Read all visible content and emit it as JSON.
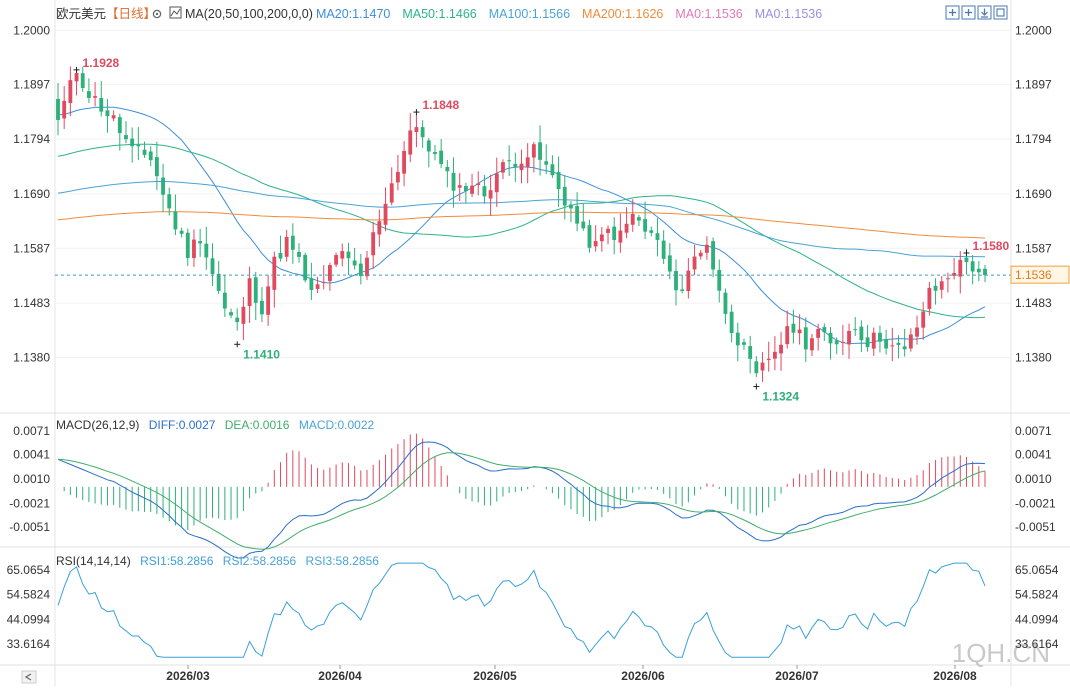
{
  "header": {
    "symbol": "欧元美元",
    "period": "【日线】",
    "gear_icon": "gear-icon",
    "ma_icon": "line-chart-icon",
    "ma_title": "MA(20,50,100,200,0,0)",
    "ma_values": [
      {
        "label": "MA20:1.1470",
        "color": "#3d8fd9"
      },
      {
        "label": "MA50:1.1466",
        "color": "#2db38a"
      },
      {
        "label": "MA100:1.1566",
        "color": "#4aa3d6"
      },
      {
        "label": "MA200:1.1626",
        "color": "#f08c3c"
      },
      {
        "label": "MA0:1.1536",
        "color": "#e07ab8"
      },
      {
        "label": "MA0:1.1536",
        "color": "#9b8fe0"
      }
    ]
  },
  "toolbar": {
    "icons": [
      "expand-icon",
      "shrink-icon",
      "download-icon",
      "fullscreen-icon"
    ]
  },
  "colors": {
    "up": "#e04a5f",
    "down": "#2db07a",
    "ma20": "#3d8fd9",
    "ma50": "#2db38a",
    "ma100": "#4aa3d6",
    "ma200": "#f08c3c",
    "price_line": "#3aa0b8",
    "diff": "#2a6fc9",
    "dea": "#3fae6a",
    "rsi": "#3aa0d8",
    "watermark": "#c9c9c9"
  },
  "price_axis": {
    "ticks": [
      "1.2000",
      "1.1897",
      "1.1794",
      "1.1690",
      "1.1587",
      "1.1483",
      "1.1380"
    ],
    "current": "1.1536"
  },
  "annotations": {
    "high1": "1.1928",
    "low1": "1.1410",
    "high2": "1.1848",
    "low2": "1.1324",
    "high3": "1.1580"
  },
  "macd": {
    "title": "MACD(26,12,9)",
    "diff": "DIFF:0.0027",
    "dea": "DEA:0.0016",
    "macd": "MACD:0.0022",
    "ticks": [
      "0.0071",
      "0.0041",
      "0.0010",
      "-0.0021",
      "-0.0051"
    ]
  },
  "rsi": {
    "title": "RSI(14,14,14)",
    "rsi1": "RSI1:58.2856",
    "rsi2": "RSI2:58.2856",
    "rsi3": "RSI3:58.2856",
    "ticks": [
      "65.0654",
      "54.5824",
      "44.0994",
      "33.6164"
    ]
  },
  "x_axis": {
    "labels": [
      "2026/03",
      "2026/04",
      "2026/05",
      "2026/06",
      "2026/07",
      "2026/08"
    ],
    "nav_icon": "left-arrow-icon"
  },
  "watermark": "1QH.CN",
  "chart_data": {
    "type": "candlestick",
    "title": "欧元美元【日线】",
    "ylim": [
      1.129,
      1.201
    ],
    "series": [
      {
        "name": "MA20",
        "current": 1.147
      },
      {
        "name": "MA50",
        "current": 1.1466
      },
      {
        "name": "MA100",
        "current": 1.1566
      },
      {
        "name": "MA200",
        "current": 1.1626
      }
    ],
    "x_labels": [
      "2026/03",
      "2026/04",
      "2026/05",
      "2026/06",
      "2026/07",
      "2026/08"
    ],
    "close_anchors": [
      [
        0,
        1.183
      ],
      [
        3,
        1.1925
      ],
      [
        5,
        1.188
      ],
      [
        9,
        1.183
      ],
      [
        12,
        1.177
      ],
      [
        15,
        1.176
      ],
      [
        17,
        1.169
      ],
      [
        19,
        1.163
      ],
      [
        21,
        1.158
      ],
      [
        23,
        1.161
      ],
      [
        25,
        1.154
      ],
      [
        27,
        1.147
      ],
      [
        29,
        1.144
      ],
      [
        31,
        1.152
      ],
      [
        33,
        1.1475
      ],
      [
        35,
        1.156
      ],
      [
        37,
        1.16
      ],
      [
        39,
        1.156
      ],
      [
        41,
        1.15
      ],
      [
        43,
        1.152
      ],
      [
        45,
        1.158
      ],
      [
        47,
        1.156
      ],
      [
        49,
        1.153
      ],
      [
        51,
        1.161
      ],
      [
        53,
        1.168
      ],
      [
        55,
        1.174
      ],
      [
        57,
        1.181
      ],
      [
        59,
        1.18
      ],
      [
        61,
        1.176
      ],
      [
        63,
        1.172
      ],
      [
        65,
        1.17
      ],
      [
        67,
        1.171
      ],
      [
        69,
        1.169
      ],
      [
        71,
        1.173
      ],
      [
        73,
        1.175
      ],
      [
        75,
        1.176
      ],
      [
        77,
        1.177
      ],
      [
        79,
        1.174
      ],
      [
        81,
        1.17
      ],
      [
        83,
        1.166
      ],
      [
        85,
        1.161
      ],
      [
        87,
        1.159
      ],
      [
        89,
        1.162
      ],
      [
        91,
        1.161
      ],
      [
        93,
        1.165
      ],
      [
        95,
        1.162
      ],
      [
        97,
        1.16
      ],
      [
        99,
        1.153
      ],
      [
        101,
        1.151
      ],
      [
        103,
        1.157
      ],
      [
        105,
        1.16
      ],
      [
        107,
        1.15
      ],
      [
        109,
        1.144
      ],
      [
        111,
        1.139
      ],
      [
        113,
        1.134
      ],
      [
        115,
        1.138
      ],
      [
        117,
        1.141
      ],
      [
        119,
        1.144
      ],
      [
        121,
        1.141
      ],
      [
        123,
        1.143
      ],
      [
        125,
        1.14
      ],
      [
        127,
        1.142
      ],
      [
        129,
        1.144
      ],
      [
        131,
        1.141
      ],
      [
        133,
        1.142
      ],
      [
        135,
        1.14
      ],
      [
        137,
        1.139
      ],
      [
        139,
        1.144
      ],
      [
        141,
        1.15
      ],
      [
        143,
        1.152
      ],
      [
        145,
        1.155
      ],
      [
        147,
        1.156
      ],
      [
        149,
        1.1545
      ],
      [
        150,
        1.1536
      ]
    ],
    "current_price": 1.1536,
    "macd": {
      "diff": 0.0027,
      "dea": 0.0016,
      "macd": 0.0022,
      "ylim": [
        -0.0074,
        0.0085
      ]
    },
    "rsi": {
      "current": 58.2856,
      "ylim": [
        26.0,
        71.0
      ]
    }
  }
}
